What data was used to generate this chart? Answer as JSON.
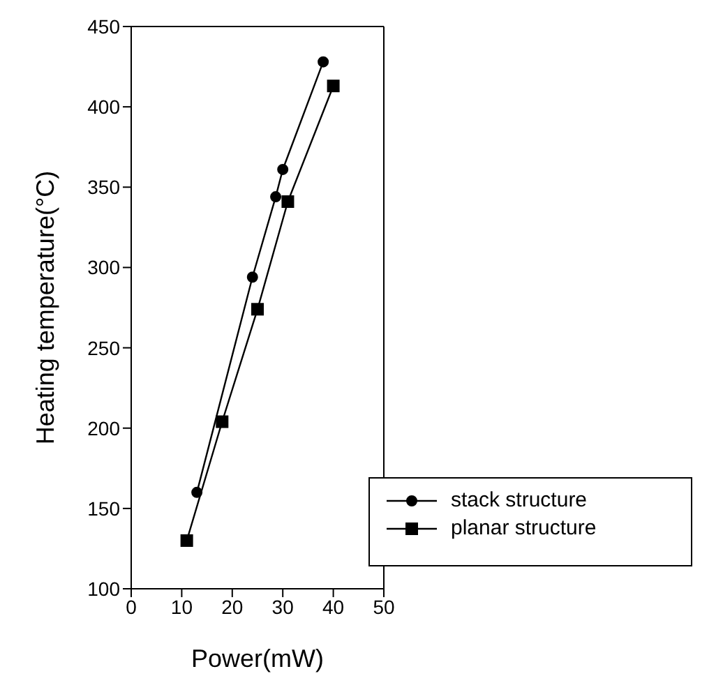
{
  "chart_data": {
    "type": "line",
    "xlabel": "Power(mW)",
    "ylabel": "Heating temperature(°C)",
    "xlim": [
      0,
      50
    ],
    "xticks": [
      0,
      10,
      20,
      30,
      40,
      50
    ],
    "ylim": [
      100,
      450
    ],
    "yticks": [
      100,
      150,
      200,
      250,
      300,
      350,
      400,
      450
    ],
    "grid": false,
    "legend": "bottom right",
    "line_style": "solid",
    "series": [
      {
        "name": "stack structure",
        "color": "#000000",
        "marker": "circle",
        "x": [
          13,
          24,
          28.6,
          30,
          38
        ],
        "values": [
          160,
          294,
          344,
          361,
          428
        ]
      },
      {
        "name": "planar structure",
        "color": "#000000",
        "marker": "square",
        "x": [
          11,
          18,
          25,
          31,
          40
        ],
        "values": [
          130,
          204,
          274,
          341,
          413
        ]
      }
    ]
  }
}
